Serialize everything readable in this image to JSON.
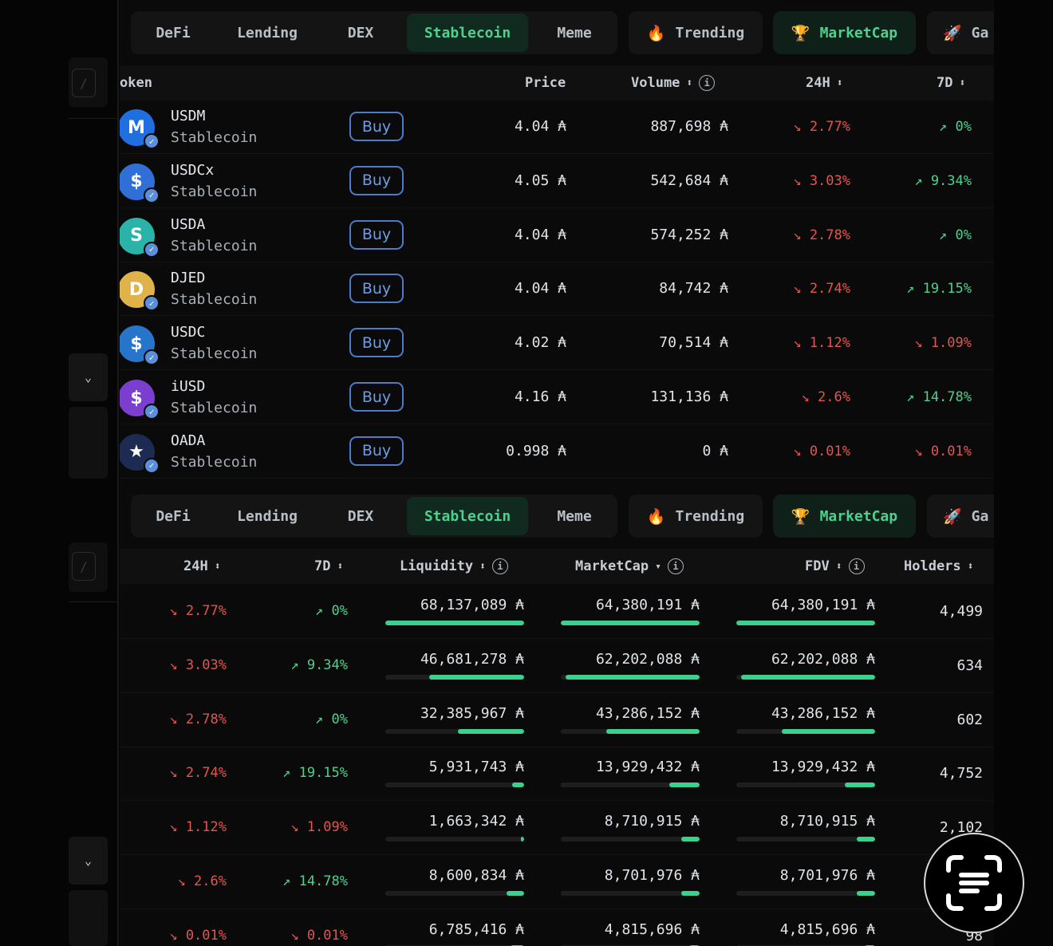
{
  "tabs": {
    "categories": [
      "DeFi",
      "Lending",
      "DEX",
      "Stablecoin",
      "Meme"
    ],
    "active": "Stablecoin",
    "pills": [
      {
        "icon": "🔥",
        "label": "Trending"
      },
      {
        "icon": "🏆",
        "label": "MarketCap"
      },
      {
        "icon": "🚀",
        "label": "Ga"
      }
    ]
  },
  "sidebar": {
    "search_hint": "/",
    "chevron": "⌄"
  },
  "top_table": {
    "headers": {
      "token": "oken",
      "price": "Price",
      "volume": "Volume",
      "h24": "24H",
      "d7": "7D"
    },
    "buy_label": "Buy",
    "unit": "₳",
    "rows": [
      {
        "symbol": "USDM",
        "category": "Stablecoin",
        "price": "4.04 ₳",
        "volume": "887,698 ₳",
        "h24": "↘ 2.77%",
        "h24_dir": "down",
        "d7": "↗ 0%",
        "d7_dir": "up",
        "logo_text": "M",
        "logo_color": "#1f6fe0"
      },
      {
        "symbol": "USDCx",
        "category": "Stablecoin",
        "price": "4.05 ₳",
        "volume": "542,684 ₳",
        "h24": "↘ 3.03%",
        "h24_dir": "down",
        "d7": "↗ 9.34%",
        "d7_dir": "up",
        "logo_text": "$",
        "logo_color": "#2f6fd6"
      },
      {
        "symbol": "USDA",
        "category": "Stablecoin",
        "price": "4.04 ₳",
        "volume": "574,252 ₳",
        "h24": "↘ 2.78%",
        "h24_dir": "down",
        "d7": "↗ 0%",
        "d7_dir": "up",
        "logo_text": "S",
        "logo_color": "#2ab3a8"
      },
      {
        "symbol": "DJED",
        "category": "Stablecoin",
        "price": "4.04 ₳",
        "volume": "84,742 ₳",
        "h24": "↘ 2.74%",
        "h24_dir": "down",
        "d7": "↗ 19.15%",
        "d7_dir": "up",
        "logo_text": "D",
        "logo_color": "#e0b24a"
      },
      {
        "symbol": "USDC",
        "category": "Stablecoin",
        "price": "4.02 ₳",
        "volume": "70,514 ₳",
        "h24": "↘ 1.12%",
        "h24_dir": "down",
        "d7": "↘ 1.09%",
        "d7_dir": "down",
        "logo_text": "$",
        "logo_color": "#2775ca"
      },
      {
        "symbol": "iUSD",
        "category": "Stablecoin",
        "price": "4.16 ₳",
        "volume": "131,136 ₳",
        "h24": "↘ 2.6%",
        "h24_dir": "down",
        "d7": "↗ 14.78%",
        "d7_dir": "up",
        "logo_text": "$",
        "logo_color": "#7b3fd0"
      },
      {
        "symbol": "OADA",
        "category": "Stablecoin",
        "price": "0.998 ₳",
        "volume": "0 ₳",
        "h24": "↘ 0.01%",
        "h24_dir": "down",
        "d7": "↘ 0.01%",
        "d7_dir": "down",
        "logo_text": "★",
        "logo_color": "#1d2b52"
      }
    ]
  },
  "bottom_table": {
    "headers": {
      "h24": "24H",
      "d7": "7D",
      "liquidity": "Liquidity",
      "marketcap": "MarketCap",
      "fdv": "FDV",
      "holders": "Holders"
    },
    "rows": [
      {
        "h24": "↘ 2.77%",
        "h24_dir": "down",
        "d7": "↗ 0%",
        "d7_dir": "up",
        "liquidity": "68,137,089 ₳",
        "liq_frac": 1.0,
        "marketcap": "64,380,191 ₳",
        "mc_frac": 1.0,
        "fdv": "64,380,191 ₳",
        "fdv_frac": 1.0,
        "holders": "4,499"
      },
      {
        "h24": "↘ 3.03%",
        "h24_dir": "down",
        "d7": "↗ 9.34%",
        "d7_dir": "up",
        "liquidity": "46,681,278 ₳",
        "liq_frac": 0.685,
        "marketcap": "62,202,088 ₳",
        "mc_frac": 0.966,
        "fdv": "62,202,088 ₳",
        "fdv_frac": 0.966,
        "holders": "634"
      },
      {
        "h24": "↘ 2.78%",
        "h24_dir": "down",
        "d7": "↗ 0%",
        "d7_dir": "up",
        "liquidity": "32,385,967 ₳",
        "liq_frac": 0.475,
        "marketcap": "43,286,152 ₳",
        "mc_frac": 0.672,
        "fdv": "43,286,152 ₳",
        "fdv_frac": 0.672,
        "holders": "602"
      },
      {
        "h24": "↘ 2.74%",
        "h24_dir": "down",
        "d7": "↗ 19.15%",
        "d7_dir": "up",
        "liquidity": "5,931,743 ₳",
        "liq_frac": 0.087,
        "marketcap": "13,929,432 ₳",
        "mc_frac": 0.216,
        "fdv": "13,929,432 ₳",
        "fdv_frac": 0.216,
        "holders": "4,752"
      },
      {
        "h24": "↘ 1.12%",
        "h24_dir": "down",
        "d7": "↘ 1.09%",
        "d7_dir": "down",
        "liquidity": "1,663,342 ₳",
        "liq_frac": 0.024,
        "marketcap": "8,710,915 ₳",
        "mc_frac": 0.135,
        "fdv": "8,710,915 ₳",
        "fdv_frac": 0.135,
        "holders": "2,102"
      },
      {
        "h24": "↘ 2.6%",
        "h24_dir": "down",
        "d7": "↗ 14.78%",
        "d7_dir": "up",
        "liquidity": "8,600,834 ₳",
        "liq_frac": 0.126,
        "marketcap": "8,701,976 ₳",
        "mc_frac": 0.135,
        "fdv": "8,701,976 ₳",
        "fdv_frac": 0.135,
        "holders": ""
      },
      {
        "h24": "↘ 0.01%",
        "h24_dir": "down",
        "d7": "↘ 0.01%",
        "d7_dir": "down",
        "liquidity": "6,785,416 ₳",
        "liq_frac": 0.1,
        "marketcap": "4,815,696 ₳",
        "mc_frac": 0.075,
        "fdv": "4,815,696 ₳",
        "fdv_frac": 0.075,
        "holders": "98"
      }
    ]
  },
  "colors": {
    "up": "#4fd08f",
    "down": "#e0574f",
    "accent": "#4fd08f",
    "buy": "#6e9de6",
    "bar": "#3ccf8e"
  }
}
